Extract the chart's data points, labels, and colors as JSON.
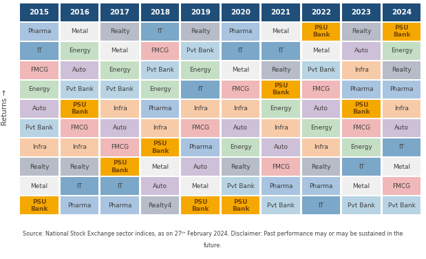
{
  "years": [
    "2015",
    "2016",
    "2017",
    "2018",
    "2019",
    "2020",
    "2021",
    "2022",
    "2023",
    "2024"
  ],
  "rows": [
    [
      "Pharma",
      "Metal",
      "Realty",
      "IT",
      "Realty",
      "Pharma",
      "Metal",
      "PSU\nBank",
      "Realty",
      "PSU\nBank"
    ],
    [
      "IT",
      "Energy",
      "Metal",
      "FMCG",
      "Pvt Bank",
      "IT",
      "IT",
      "Metal",
      "Auto",
      "Energy"
    ],
    [
      "FMCG",
      "Auto",
      "Energy",
      "Pvt Bank",
      "Energy",
      "Metal",
      "Realty",
      "Pvt Bank",
      "Infra",
      "Realty"
    ],
    [
      "Energy",
      "Pvt Bank",
      "Pvt Bank",
      "Energy",
      "IT",
      "FMCG",
      "PSU\nBank",
      "FMCG",
      "Pharma",
      "Pharma"
    ],
    [
      "Auto",
      "PSU\nBank",
      "Infra",
      "Pharma",
      "Infra",
      "Infra",
      "Energy",
      "Auto",
      "PSU\nBank",
      "Infra"
    ],
    [
      "Pvt Bank",
      "FMCG",
      "Auto",
      "Infra",
      "FMCG",
      "Auto",
      "Infra",
      "Energy",
      "FMCG",
      "Auto"
    ],
    [
      "Infra",
      "Infra",
      "FMCG",
      "PSU\nBank",
      "Pharma",
      "Energy",
      "Auto",
      "Infra",
      "Energy",
      "IT"
    ],
    [
      "Realty",
      "Realty",
      "PSU\nBank",
      "Metal",
      "Auto",
      "Realty",
      "FMCG",
      "Realty",
      "IT",
      "Metal"
    ],
    [
      "Metal",
      "IT",
      "IT",
      "Auto",
      "Metal",
      "Pvt Bank",
      "Pharma",
      "Pharma",
      "Metal",
      "FMCG"
    ],
    [
      "PSU\nBank",
      "Pharma",
      "Pharma",
      "Realty4",
      "PSU\nBank",
      "PSU\nBank",
      "Pvt Bank",
      "IT",
      "Pvt Bank",
      "Pvt Bank"
    ]
  ],
  "sector_colors": {
    "Pharma": "#a8c4e0",
    "Metal": "#f0f0f0",
    "Realty": "#b8bcc8",
    "IT": "#7ba7c8",
    "Energy": "#c5dfc5",
    "FMCG": "#f0b8b8",
    "Pvt Bank": "#b8d4e4",
    "Auto": "#cec0d8",
    "PSU\nBank": "#f5a800",
    "Infra": "#f8cba8",
    "Realty4": "#b8bcc8"
  },
  "psu_text_color": "#7a4800",
  "default_text_color": "#404040",
  "header_color": "#1f4e79",
  "header_text_color": "#ffffff",
  "footer_line1": "Source: National Stock Exchange sector indices, as on 27",
  "footer_sup": "th",
  "footer_line2": " February 2024. Disclaimer: Past performance may or may be sustained in the",
  "footer_line3": "future.",
  "ylabel": "Returns →"
}
